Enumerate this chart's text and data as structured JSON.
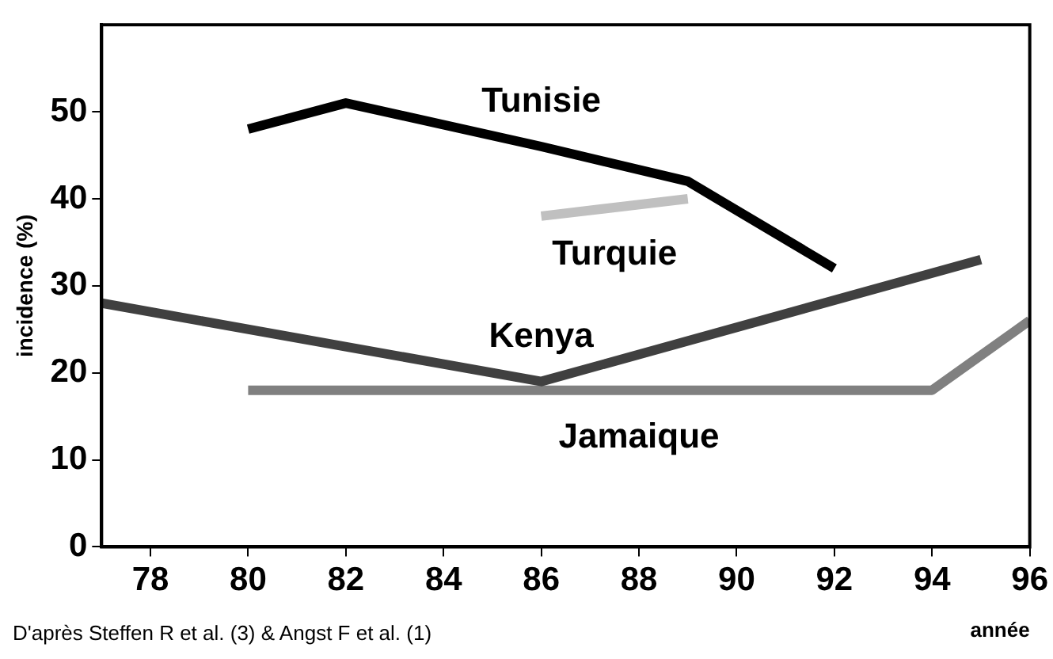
{
  "chart_data": {
    "type": "line",
    "xlabel": "année",
    "ylabel": "incidence (%)",
    "annotations": [
      "D'après Steffen R et al. (3) & Angst F et al. (1)"
    ],
    "xlim": [
      77,
      96
    ],
    "xticks": [
      78,
      80,
      82,
      84,
      86,
      88,
      90,
      92,
      94,
      96
    ],
    "ylim": [
      0,
      60
    ],
    "yticks": [
      0,
      10,
      20,
      30,
      40,
      50
    ],
    "grid": false,
    "legend": false,
    "marker": "none",
    "line_style": "solid",
    "series": [
      {
        "name": "Tunisie",
        "color": "#000000",
        "x": [
          80,
          82,
          86,
          89,
          92
        ],
        "values": [
          48,
          51,
          46,
          42,
          32
        ]
      },
      {
        "name": "Turquie",
        "color": "#c0c0c0",
        "x": [
          86,
          89
        ],
        "values": [
          38,
          40
        ]
      },
      {
        "name": "Kenya",
        "color": "#404040",
        "x": [
          77,
          86,
          95
        ],
        "values": [
          28,
          19,
          33
        ]
      },
      {
        "name": "Jamaique",
        "color": "#808080",
        "x": [
          80,
          94,
          96
        ],
        "values": [
          18,
          18,
          26
        ]
      }
    ]
  }
}
